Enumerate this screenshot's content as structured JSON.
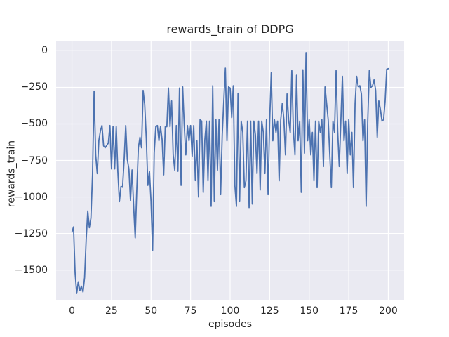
{
  "chart_data": {
    "type": "line",
    "title": "rewards_train of DDPG",
    "xlabel": "episodes",
    "ylabel": "rewards_train",
    "x_start": 0,
    "x_step": 1,
    "x_range": [
      0,
      200
    ],
    "y": [
      -1240,
      -1205,
      -1520,
      -1660,
      -1580,
      -1640,
      -1610,
      -1650,
      -1550,
      -1290,
      -1096,
      -1210,
      -1144,
      -850,
      -276,
      -712,
      -840,
      -615,
      -548,
      -511,
      -650,
      -663,
      -647,
      -631,
      -511,
      -808,
      -519,
      -808,
      -519,
      -824,
      -1032,
      -928,
      -933,
      -744,
      -511,
      -744,
      -808,
      -1024,
      -815,
      -1064,
      -1280,
      -950,
      -663,
      -591,
      -663,
      -271,
      -367,
      -599,
      -920,
      -824,
      -1032,
      -1365,
      -700,
      -519,
      -511,
      -615,
      -519,
      -607,
      -848,
      -519,
      -519,
      -255,
      -519,
      -343,
      -712,
      -816,
      -511,
      -824,
      -255,
      -920,
      -247,
      -511,
      -712,
      -511,
      -615,
      -511,
      -720,
      -511,
      -888,
      -615,
      -1000,
      -471,
      -481,
      -968,
      -610,
      -481,
      -889,
      -481,
      -1064,
      -239,
      -1032,
      -471,
      -816,
      -471,
      -984,
      -577,
      -343,
      -119,
      -615,
      -247,
      -255,
      -457,
      -239,
      -920,
      -1064,
      -290,
      -1032,
      -481,
      -558,
      -936,
      -889,
      -481,
      -1072,
      -481,
      -1048,
      -481,
      -577,
      -840,
      -481,
      -952,
      -481,
      -558,
      -840,
      -471,
      -984,
      -481,
      -150,
      -615,
      -471,
      -558,
      -481,
      -889,
      -471,
      -359,
      -471,
      -712,
      -295,
      -471,
      -558,
      -135,
      -548,
      -712,
      -167,
      -615,
      -481,
      -968,
      -130,
      -700,
      -13,
      -615,
      -471,
      -712,
      -558,
      -889,
      -481,
      -936,
      -481,
      -558,
      -471,
      -792,
      -247,
      -359,
      -471,
      -712,
      -936,
      -481,
      -558,
      -135,
      -548,
      -792,
      -481,
      -174,
      -615,
      -481,
      -840,
      -471,
      -712,
      -558,
      -936,
      -359,
      -174,
      -247,
      -239,
      -295,
      -615,
      -471,
      -1064,
      -481,
      -135,
      -250,
      -240,
      -199,
      -271,
      -591,
      -343,
      -400,
      -481,
      -471,
      -343,
      -126,
      -122
    ],
    "x_ticks": [
      0,
      25,
      50,
      75,
      100,
      125,
      150,
      175,
      200
    ],
    "y_ticks": [
      0,
      -250,
      -500,
      -750,
      -1000,
      -1250,
      -1500
    ],
    "xlim": [
      -10,
      210
    ],
    "ylim": [
      -1708,
      69
    ],
    "grid": true,
    "legend": false,
    "style": {
      "line_color": "#4c72b0",
      "plot_bg": "#eaeaf2",
      "grid_color": "#ffffff",
      "text_color": "#262626",
      "figure_bg": "#ffffff"
    }
  }
}
